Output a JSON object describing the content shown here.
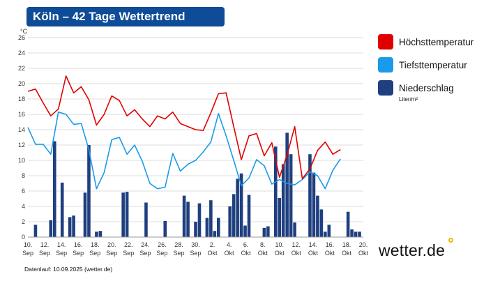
{
  "header": {
    "title": "Köln – 42 Tage Wettertrend"
  },
  "legend": {
    "items": [
      {
        "label": "Höchsttemperatur",
        "color": "#e10000"
      },
      {
        "label": "Tiefsttemperatur",
        "color": "#1a9bea"
      },
      {
        "label": "Niederschlag",
        "color": "#1f3f7f"
      }
    ],
    "precip_unit": "Liter/m²"
  },
  "brand": {
    "logo_text": "wetter.de",
    "accent_color": "#f1b800"
  },
  "footer": {
    "note": "Datenlauf: 10.09.2025 (wetter.de)"
  },
  "chart_data": {
    "type": "line",
    "title": "Köln – 42 Tage Wettertrend",
    "ylabel": "°C",
    "ylim": [
      0,
      26
    ],
    "yticks": [
      0,
      2,
      4,
      6,
      8,
      10,
      12,
      14,
      16,
      18,
      20,
      22,
      24,
      26
    ],
    "grid": true,
    "x_tick_labels": [
      {
        "day": "10.",
        "month": "Sep"
      },
      {
        "day": "12.",
        "month": "Sep"
      },
      {
        "day": "14.",
        "month": "Sep"
      },
      {
        "day": "16.",
        "month": "Sep"
      },
      {
        "day": "18.",
        "month": "Sep"
      },
      {
        "day": "20.",
        "month": "Sep"
      },
      {
        "day": "22.",
        "month": "Sep"
      },
      {
        "day": "24.",
        "month": "Sep"
      },
      {
        "day": "26.",
        "month": "Sep"
      },
      {
        "day": "28.",
        "month": "Sep"
      },
      {
        "day": "30.",
        "month": "Sep"
      },
      {
        "day": "2.",
        "month": "Okt"
      },
      {
        "day": "4.",
        "month": "Okt"
      },
      {
        "day": "6.",
        "month": "Okt"
      },
      {
        "day": "8.",
        "month": "Okt"
      },
      {
        "day": "10.",
        "month": "Okt"
      },
      {
        "day": "12.",
        "month": "Okt"
      },
      {
        "day": "14.",
        "month": "Okt"
      },
      {
        "day": "16.",
        "month": "Okt"
      },
      {
        "day": "18.",
        "month": "Okt"
      },
      {
        "day": "20.",
        "month": "Okt"
      }
    ],
    "series": [
      {
        "name": "Höchsttemperatur",
        "color": "#e10000",
        "values": [
          19.0,
          19.3,
          17.5,
          15.8,
          16.7,
          21.0,
          18.8,
          19.6,
          17.9,
          14.6,
          16.0,
          18.4,
          17.8,
          15.8,
          16.6,
          15.4,
          14.4,
          15.8,
          15.4,
          16.3,
          14.8,
          14.4,
          14.0,
          13.9,
          16.2,
          18.7,
          18.8,
          14.4,
          10.1,
          13.2,
          13.5,
          10.6,
          12.3,
          7.8,
          10.7,
          14.4,
          7.6,
          8.9,
          11.3,
          12.4,
          10.8,
          11.4
        ]
      },
      {
        "name": "Tiefsttemperatur",
        "color": "#1a9bea",
        "values": [
          14.3,
          12.1,
          12.1,
          10.8,
          16.3,
          16.0,
          14.7,
          14.8,
          11.4,
          6.3,
          8.4,
          12.7,
          13.0,
          10.8,
          12.0,
          9.9,
          7.0,
          6.3,
          6.5,
          10.9,
          8.6,
          9.5,
          10.0,
          11.1,
          12.4,
          16.1,
          13.2,
          10.0,
          6.7,
          7.7,
          10.1,
          9.3,
          6.9,
          7.5,
          7.0,
          6.8,
          7.5,
          8.5,
          8.0,
          6.3,
          8.7,
          10.2
        ]
      },
      {
        "name": "Niederschlag",
        "color": "#1f3f7f",
        "type": "bar",
        "bars": [
          [
            1,
            1.6
          ],
          [
            3,
            2.2
          ],
          [
            3.5,
            12.5
          ],
          [
            4.5,
            7.1
          ],
          [
            5.5,
            2.6
          ],
          [
            6,
            2.8
          ],
          [
            7.5,
            5.8
          ],
          [
            8,
            12.0
          ],
          [
            9,
            0.7
          ],
          [
            9.5,
            0.8
          ],
          [
            12.5,
            5.8
          ],
          [
            13,
            5.9
          ],
          [
            15.5,
            4.5
          ],
          [
            18,
            2.1
          ],
          [
            20.5,
            5.4
          ],
          [
            21,
            4.6
          ],
          [
            22,
            2.0
          ],
          [
            22.5,
            4.4
          ],
          [
            23.5,
            2.5
          ],
          [
            24,
            4.8
          ],
          [
            24.5,
            0.8
          ],
          [
            25,
            2.5
          ],
          [
            26.5,
            4.0
          ],
          [
            27,
            5.6
          ],
          [
            27.5,
            7.6
          ],
          [
            28,
            8.3
          ],
          [
            28.5,
            1.5
          ],
          [
            29,
            5.5
          ],
          [
            31,
            1.2
          ],
          [
            31.5,
            1.4
          ],
          [
            32.5,
            11.8
          ],
          [
            33,
            5.1
          ],
          [
            33.5,
            9.5
          ],
          [
            34,
            13.6
          ],
          [
            34.5,
            10.8
          ],
          [
            35,
            1.9
          ],
          [
            37,
            10.8
          ],
          [
            37.5,
            8.4
          ],
          [
            38,
            5.4
          ],
          [
            38.5,
            3.6
          ],
          [
            39,
            0.7
          ],
          [
            39.5,
            1.6
          ],
          [
            42,
            3.3
          ],
          [
            42.5,
            1.0
          ],
          [
            43,
            0.7
          ],
          [
            43.5,
            0.7
          ]
        ]
      }
    ]
  }
}
